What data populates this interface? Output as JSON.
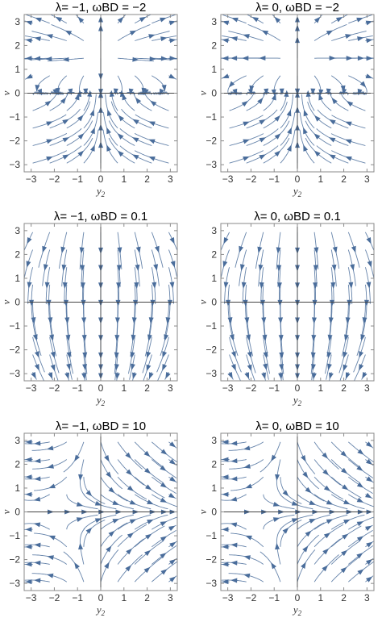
{
  "style": {
    "stream_color": "#4a6d9b",
    "frame_color": "#8a8a8a",
    "axis_color": "#444444"
  },
  "chart_data": [
    {
      "type": "streamplot",
      "title": "λ= −1,    ωBD = −2",
      "lambda": -1,
      "omega_BD": -2,
      "xlabel": "y",
      "xlabel_sub": "2",
      "ylabel": "v",
      "xlim": [
        -3.3,
        3.3
      ],
      "ylim": [
        -3.3,
        3.3
      ],
      "xticks": [
        "−3",
        "−2",
        "−1",
        "0",
        "1",
        "2",
        "3"
      ],
      "yticks": [
        "−3",
        "−2",
        "−1",
        "0",
        "1",
        "2",
        "3"
      ]
    },
    {
      "type": "streamplot",
      "title": "λ= 0,    ωBD = −2",
      "lambda": 0,
      "omega_BD": -2,
      "xlabel": "y",
      "xlabel_sub": "2",
      "ylabel": "v",
      "xlim": [
        -3.3,
        3.3
      ],
      "ylim": [
        -3.3,
        3.3
      ],
      "xticks": [
        "−3",
        "−2",
        "−1",
        "0",
        "1",
        "2",
        "3"
      ],
      "yticks": [
        "−3",
        "−2",
        "−1",
        "0",
        "1",
        "2",
        "3"
      ]
    },
    {
      "type": "streamplot",
      "title": "λ= −1,    ωBD = 0.1",
      "lambda": -1,
      "omega_BD": 0.1,
      "xlabel": "y",
      "xlabel_sub": "2",
      "ylabel": "v",
      "xlim": [
        -3.3,
        3.3
      ],
      "ylim": [
        -3.3,
        3.3
      ],
      "xticks": [
        "−3",
        "−2",
        "−1",
        "0",
        "1",
        "2",
        "3"
      ],
      "yticks": [
        "−3",
        "−2",
        "−1",
        "0",
        "1",
        "2",
        "3"
      ]
    },
    {
      "type": "streamplot",
      "title": "λ= 0,    ωBD = 0.1",
      "lambda": 0,
      "omega_BD": 0.1,
      "xlabel": "y",
      "xlabel_sub": "2",
      "ylabel": "v",
      "xlim": [
        -3.3,
        3.3
      ],
      "ylim": [
        -3.3,
        3.3
      ],
      "xticks": [
        "−3",
        "−2",
        "−1",
        "0",
        "1",
        "2",
        "3"
      ],
      "yticks": [
        "−3",
        "−2",
        "−1",
        "0",
        "1",
        "2",
        "3"
      ]
    },
    {
      "type": "streamplot",
      "title": "λ= −1,    ωBD = 10",
      "lambda": -1,
      "omega_BD": 10,
      "xlabel": "y",
      "xlabel_sub": "2",
      "ylabel": "v",
      "xlim": [
        -3.3,
        3.3
      ],
      "ylim": [
        -3.3,
        3.3
      ],
      "xticks": [
        "−3",
        "−2",
        "−1",
        "0",
        "1",
        "2",
        "3"
      ],
      "yticks": [
        "−3",
        "−2",
        "−1",
        "0",
        "1",
        "2",
        "3"
      ]
    },
    {
      "type": "streamplot",
      "title": "λ= 0,    ωBD = 10",
      "lambda": 0,
      "omega_BD": 10,
      "xlabel": "y",
      "xlabel_sub": "2",
      "ylabel": "v",
      "xlim": [
        -3.3,
        3.3
      ],
      "ylim": [
        -3.3,
        3.3
      ],
      "xticks": [
        "−3",
        "−2",
        "−1",
        "0",
        "1",
        "2",
        "3"
      ],
      "yticks": [
        "−3",
        "−2",
        "−1",
        "0",
        "1",
        "2",
        "3"
      ]
    }
  ]
}
